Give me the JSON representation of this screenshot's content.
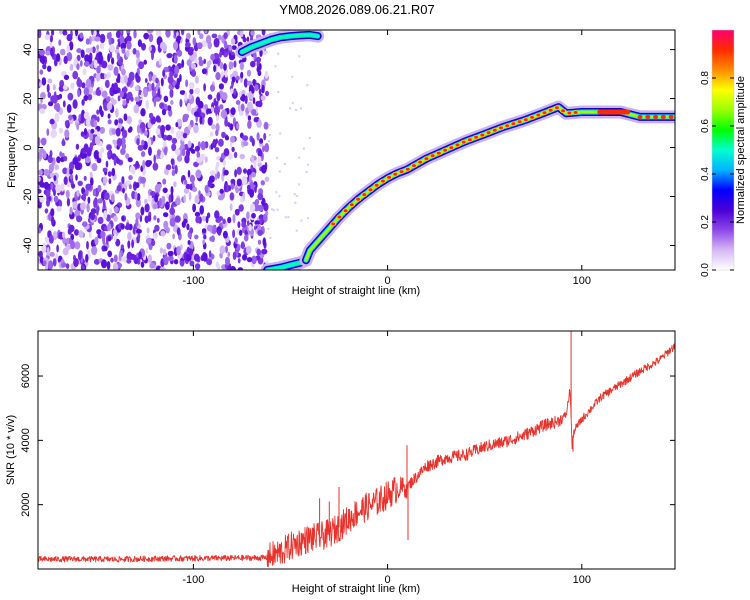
{
  "title": "YM08.2026.089.06.21.R07",
  "chart_data": [
    {
      "type": "heatmap",
      "name": "spectrogram",
      "xlabel": "Height of straight line (km)",
      "ylabel": "Frequency (Hz)",
      "xlim": [
        -180,
        148
      ],
      "ylim": [
        -50,
        48
      ],
      "xticks": [
        -100,
        0,
        100
      ],
      "yticks": [
        -40,
        -20,
        0,
        20,
        40
      ],
      "xtick_labels": [
        "-100",
        "0",
        "100"
      ],
      "ytick_labels": [
        "-40",
        "-20",
        "0",
        "20",
        "40"
      ],
      "noise_region_x": [
        -180,
        -62
      ],
      "ridge": {
        "x": [
          -42,
          -40,
          -35,
          -30,
          -25,
          -20,
          -15,
          -10,
          -5,
          0,
          5,
          10,
          20,
          30,
          40,
          50,
          60,
          70,
          80,
          88,
          92,
          100,
          110,
          120,
          130,
          148
        ],
        "freq": [
          -46,
          -42,
          -37.5,
          -33,
          -28.5,
          -24.5,
          -21,
          -18,
          -15,
          -12.5,
          -10.5,
          -9,
          -4.5,
          -1,
          2.5,
          5.5,
          8.5,
          11,
          14,
          16.5,
          14,
          14.5,
          14.5,
          14.5,
          12.5,
          12.5
        ]
      },
      "upper_branch": {
        "x": [
          -75,
          -70,
          -65,
          -60,
          -55,
          -50,
          -45,
          -40,
          -36
        ],
        "freq": [
          39,
          41,
          42.5,
          44,
          45,
          45.5,
          45.8,
          46,
          45.5
        ]
      },
      "lower_branch": {
        "x": [
          -62,
          -55,
          -50,
          -45,
          -42
        ],
        "freq": [
          -50,
          -49,
          -48,
          -47,
          -46
        ]
      },
      "colorbar": {
        "label": "Normalized spectral amplitude",
        "range": [
          0,
          1
        ],
        "ticks": [
          0.0,
          0.2,
          0.4,
          0.6,
          0.8
        ],
        "tick_labels": [
          "0.0",
          "0.2",
          "0.4",
          "0.6",
          "0.8"
        ],
        "colors": [
          "#ffffff",
          "#d6b8f5",
          "#8c46e8",
          "#4b00d6",
          "#0000ff",
          "#00b4ff",
          "#00ffd0",
          "#00ff00",
          "#9bff00",
          "#ffff00",
          "#ff8c00",
          "#ff2a00",
          "#ff0070"
        ]
      }
    },
    {
      "type": "line",
      "name": "snr",
      "xlabel": "Height of straight line (km)",
      "ylabel": "SNR (10 * v/v)",
      "xlim": [
        -180,
        148
      ],
      "ylim": [
        0,
        7400
      ],
      "xticks": [
        -100,
        0,
        100
      ],
      "yticks": [
        2000,
        4000,
        6000
      ],
      "xtick_labels": [
        "-100",
        "0",
        "100"
      ],
      "ytick_labels": [
        "2000",
        "4000",
        "6000"
      ],
      "color": "#e8322c",
      "series": {
        "x": [
          -180,
          -160,
          -140,
          -120,
          -100,
          -80,
          -62,
          -55,
          -50,
          -45,
          -40,
          -35,
          -30,
          -25,
          -20,
          -15,
          -10,
          -5,
          0,
          5,
          10,
          20,
          30,
          40,
          50,
          60,
          70,
          80,
          88,
          92,
          94,
          95,
          96,
          100,
          105,
          110,
          120,
          130,
          140,
          148
        ],
        "y": [
          300,
          310,
          300,
          320,
          330,
          340,
          350,
          520,
          700,
          850,
          950,
          1000,
          1100,
          1300,
          1550,
          1800,
          1950,
          2100,
          2300,
          2500,
          2550,
          3200,
          3450,
          3550,
          3800,
          3950,
          4150,
          4450,
          4600,
          4800,
          5600,
          3800,
          4300,
          4650,
          5000,
          5350,
          5750,
          6150,
          6500,
          6950
        ]
      },
      "spikes": [
        {
          "x": 10,
          "y": 3850
        },
        {
          "x": 94.5,
          "y": 7400
        },
        {
          "x": 95.5,
          "y": 3650
        },
        {
          "x": -35,
          "y": 2200
        },
        {
          "x": -30,
          "y": 2100
        },
        {
          "x": -25,
          "y": 2550
        },
        {
          "x": 10.5,
          "y": 900
        }
      ]
    }
  ]
}
